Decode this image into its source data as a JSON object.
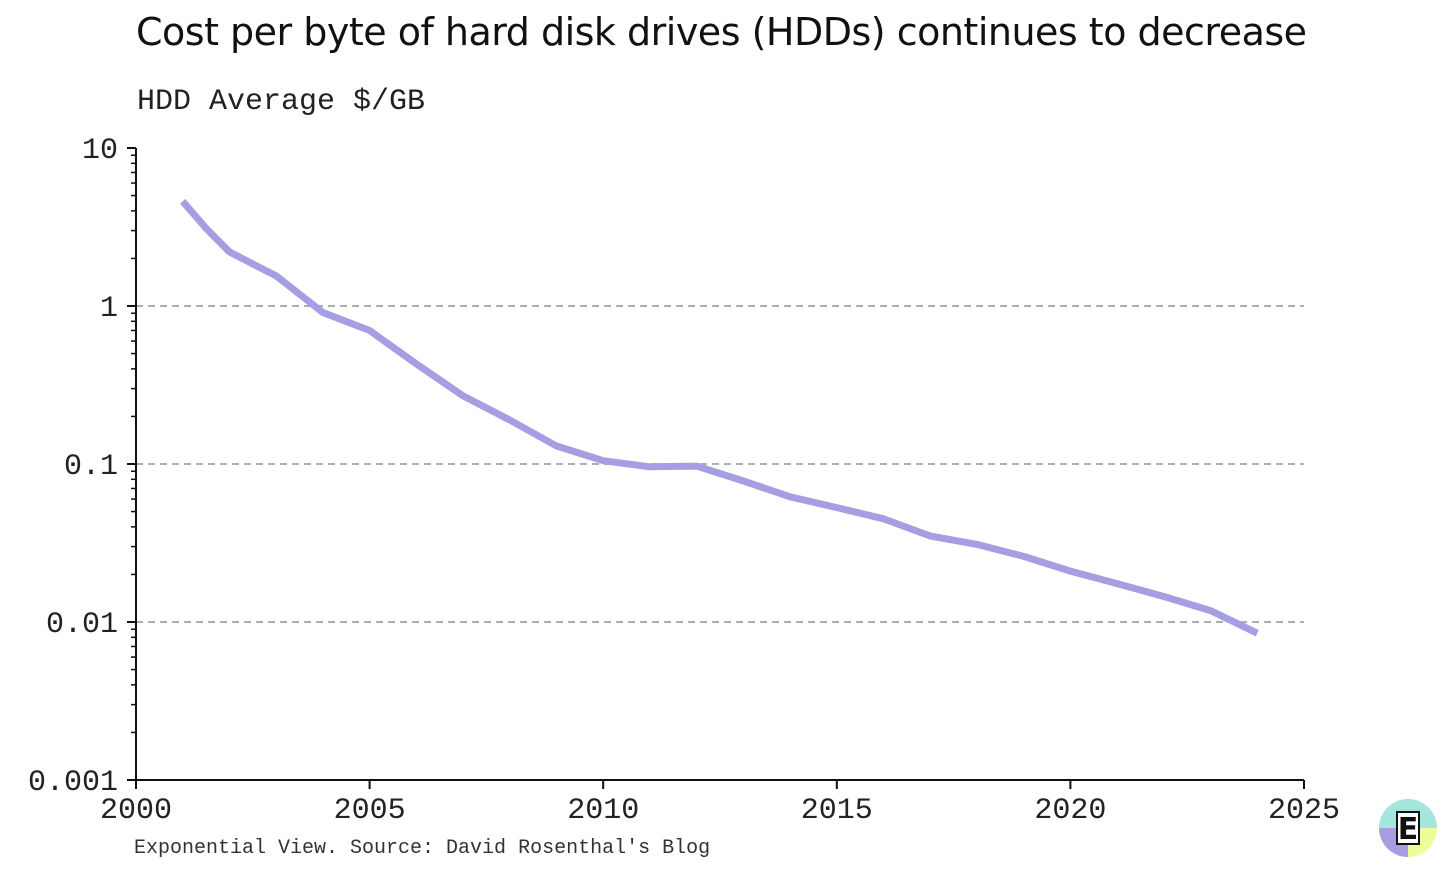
{
  "title": "Cost per byte of hard disk drives (HDDs) continues to decrease",
  "subtitle": "HDD Average $/GB",
  "source": "Exponential View. Source: David Rosenthal's Blog",
  "logo": {
    "icon": "exponential-view-logo",
    "letter": "E"
  },
  "colors": {
    "line": "#a59ee2",
    "grid": "#a3b3b1",
    "axis": "#111111",
    "logo_purple": "#a59ee2",
    "logo_teal": "#a5e6dc",
    "logo_lime": "#eefc9c"
  },
  "chart_data": {
    "type": "line",
    "title": "Cost per byte of hard disk drives (HDDs) continues to decrease",
    "ylabel": "HDD Average $/GB",
    "xlabel": "",
    "xlim": [
      2000,
      2025
    ],
    "ylim": [
      0.001,
      10
    ],
    "yscale": "log",
    "grid": "horizontal dashed at 0.01, 0.1, 1",
    "x_ticks": [
      2000,
      2005,
      2010,
      2015,
      2020,
      2025
    ],
    "x_tick_labels": [
      "2000",
      "2005",
      "2010",
      "2015",
      "2020",
      "2025"
    ],
    "y_ticks": [
      10,
      1,
      0.1,
      0.01,
      0.001
    ],
    "y_tick_labels": [
      "10",
      "1",
      "0.1",
      "0.01",
      "0.001"
    ],
    "series": [
      {
        "x": [
          2001,
          2001.5,
          2002,
          2003,
          2004,
          2005,
          2006,
          2007,
          2008,
          2009,
          2010,
          2011,
          2012,
          2013,
          2014,
          2015,
          2016,
          2017,
          2018,
          2019,
          2020,
          2021,
          2022,
          2023,
          2024
        ],
        "values": [
          4.6,
          3.1,
          2.2,
          1.55,
          0.91,
          0.7,
          0.43,
          0.27,
          0.19,
          0.13,
          0.105,
          0.096,
          0.097,
          0.078,
          0.062,
          0.053,
          0.045,
          0.035,
          0.031,
          0.026,
          0.021,
          0.0175,
          0.0145,
          0.0118,
          0.0085
        ]
      }
    ]
  }
}
